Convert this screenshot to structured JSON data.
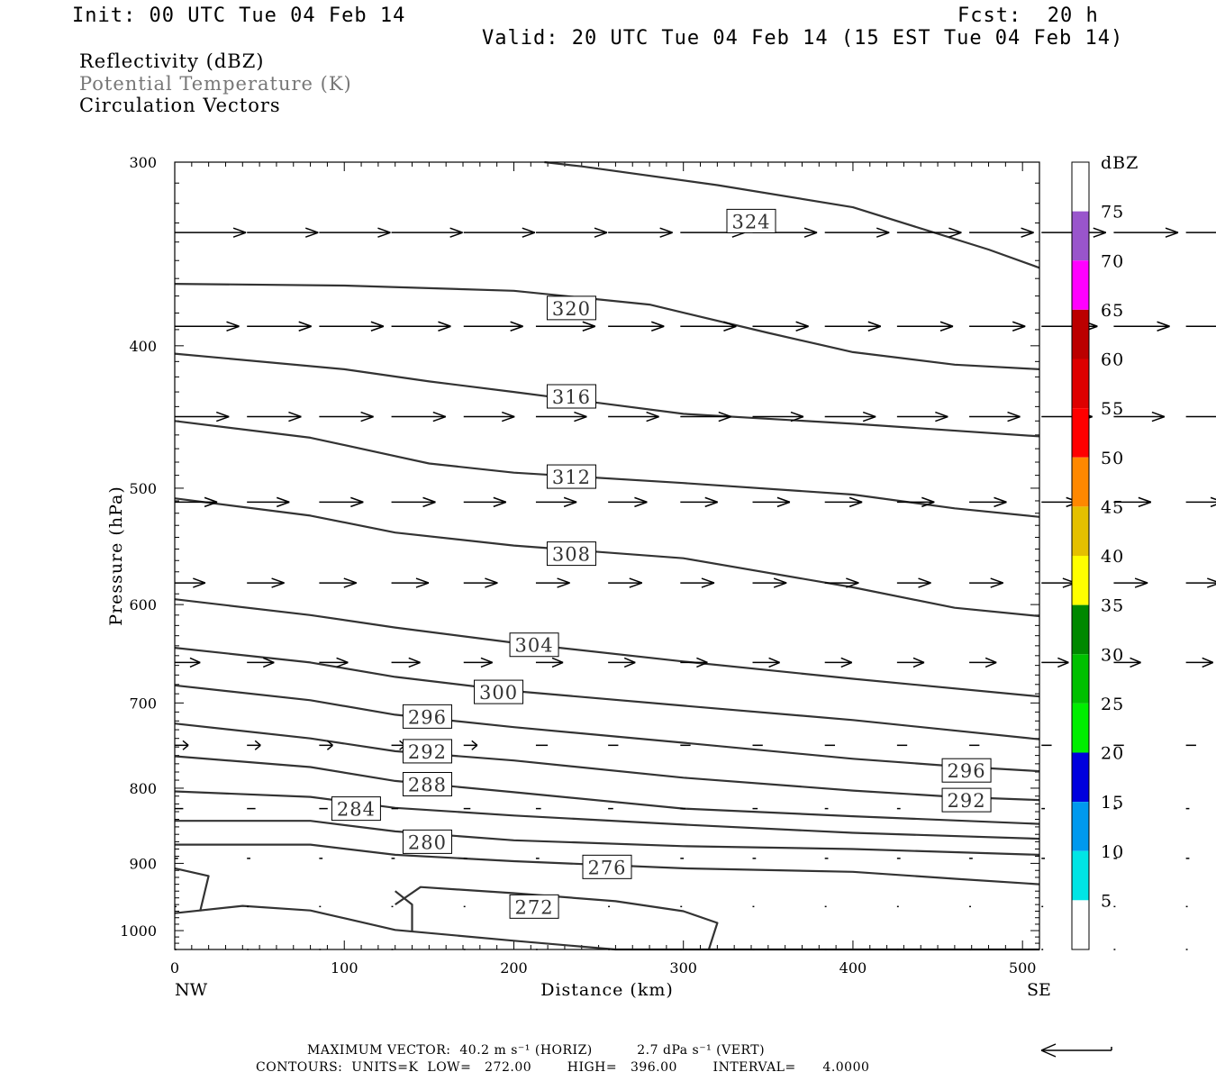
{
  "header": {
    "init": "Init: 00 UTC Tue 04 Feb 14",
    "fcst": "Fcst:  20 h",
    "valid": "Valid: 20 UTC Tue 04 Feb 14 (15 EST Tue 04 Feb 14)"
  },
  "legend": {
    "line1": "Reflectivity (dBZ)",
    "line2": "Potential Temperature (K)",
    "line3": "Circulation Vectors"
  },
  "colorbar": {
    "unit": "dBZ",
    "labels": [
      "5",
      "10",
      "15",
      "20",
      "25",
      "30",
      "35",
      "40",
      "45",
      "50",
      "55",
      "60",
      "65",
      "70",
      "75"
    ],
    "colors": [
      "#00e5e5",
      "#0099ee",
      "#0000dd",
      "#00ee00",
      "#00c000",
      "#008800",
      "#ffff00",
      "#e5c000",
      "#ff8800",
      "#ff0000",
      "#dd0000",
      "#bb0000",
      "#ff00ff",
      "#9955cc",
      "#ffffff"
    ]
  },
  "footer": {
    "max_vector": "MAXIMUM VECTOR:  40.2 m s⁻¹ (HORIZ)          2.7 dPa s⁻¹ (VERT)",
    "contours": "CONTOURS:  UNITS=K  LOW=   272.00        HIGH=   396.00        INTERVAL=      4.0000"
  },
  "chart_data": {
    "type": "contour cross-section",
    "xlabel": "Distance (km)",
    "ylabel": "Pressure (hPa)",
    "x_ticks": [
      "0",
      "100",
      "200",
      "300",
      "400",
      "500"
    ],
    "y_ticks": [
      "300",
      "400",
      "500",
      "600",
      "700",
      "800",
      "900",
      "1000"
    ],
    "x_end_labels": {
      "left": "NW",
      "right": "SE"
    },
    "xlim": [
      0,
      510
    ],
    "ylim": [
      1030,
      300
    ],
    "y_scale": "log",
    "isentropes_K": [
      {
        "theta": 324,
        "points": [
          [
            218,
            300
          ],
          [
            240,
            302
          ],
          [
            320,
            311
          ],
          [
            400,
            322
          ],
          [
            480,
            344
          ],
          [
            510,
            354
          ]
        ]
      },
      {
        "theta": 320,
        "points": [
          [
            0,
            363
          ],
          [
            100,
            364
          ],
          [
            200,
            367
          ],
          [
            280,
            375
          ],
          [
            350,
            392
          ],
          [
            400,
            404
          ],
          [
            460,
            412
          ],
          [
            510,
            415
          ]
        ]
      },
      {
        "theta": 316,
        "points": [
          [
            0,
            405
          ],
          [
            100,
            415
          ],
          [
            150,
            423
          ],
          [
            200,
            430
          ],
          [
            300,
            445
          ],
          [
            400,
            452
          ],
          [
            510,
            461
          ]
        ]
      },
      {
        "theta": 312,
        "points": [
          [
            0,
            450
          ],
          [
            80,
            462
          ],
          [
            150,
            481
          ],
          [
            200,
            488
          ],
          [
            300,
            496
          ],
          [
            400,
            505
          ],
          [
            460,
            516
          ],
          [
            510,
            523
          ]
        ]
      },
      {
        "theta": 308,
        "points": [
          [
            0,
            508
          ],
          [
            80,
            522
          ],
          [
            130,
            536
          ],
          [
            200,
            547
          ],
          [
            300,
            558
          ],
          [
            400,
            584
          ],
          [
            460,
            603
          ],
          [
            510,
            611
          ]
        ]
      },
      {
        "theta": 304,
        "points": [
          [
            0,
            595
          ],
          [
            80,
            610
          ],
          [
            130,
            622
          ],
          [
            200,
            637
          ],
          [
            300,
            656
          ],
          [
            400,
            674
          ],
          [
            510,
            693
          ]
        ]
      },
      {
        "theta": 300,
        "points": [
          [
            0,
            642
          ],
          [
            80,
            657
          ],
          [
            130,
            672
          ],
          [
            200,
            687
          ],
          [
            300,
            703
          ],
          [
            400,
            719
          ],
          [
            510,
            741
          ]
        ]
      },
      {
        "theta": 296,
        "points": [
          [
            0,
            681
          ],
          [
            80,
            697
          ],
          [
            130,
            713
          ],
          [
            200,
            727
          ],
          [
            300,
            745
          ],
          [
            400,
            764
          ],
          [
            460,
            773
          ],
          [
            510,
            779
          ]
        ]
      },
      {
        "theta": 292,
        "points": [
          [
            0,
            723
          ],
          [
            80,
            740
          ],
          [
            130,
            755
          ],
          [
            200,
            766
          ],
          [
            300,
            787
          ],
          [
            400,
            803
          ],
          [
            460,
            811
          ],
          [
            510,
            815
          ]
        ]
      },
      {
        "theta": 288,
        "points": [
          [
            0,
            761
          ],
          [
            80,
            774
          ],
          [
            130,
            791
          ],
          [
            200,
            805
          ],
          [
            300,
            826
          ],
          [
            400,
            836
          ],
          [
            510,
            846
          ]
        ]
      },
      {
        "theta": 284,
        "points": [
          [
            0,
            804
          ],
          [
            80,
            811
          ],
          [
            130,
            825
          ],
          [
            200,
            835
          ],
          [
            300,
            847
          ],
          [
            400,
            858
          ],
          [
            510,
            866
          ]
        ]
      },
      {
        "theta": 280,
        "points": [
          [
            0,
            842
          ],
          [
            80,
            842
          ],
          [
            130,
            856
          ],
          [
            200,
            868
          ],
          [
            300,
            876
          ],
          [
            400,
            880
          ],
          [
            510,
            888
          ]
        ]
      },
      {
        "theta": 276,
        "points": [
          [
            0,
            874
          ],
          [
            80,
            874
          ],
          [
            130,
            888
          ],
          [
            200,
            897
          ],
          [
            300,
            907
          ],
          [
            400,
            912
          ],
          [
            460,
            922
          ],
          [
            510,
            930
          ]
        ]
      },
      {
        "theta": 272,
        "points": [
          [
            130,
            960
          ],
          [
            145,
            934
          ],
          [
            200,
            943
          ],
          [
            260,
            955
          ],
          [
            300,
            970
          ],
          [
            320,
            988
          ],
          [
            315,
            1030
          ]
        ]
      },
      {
        "theta": 272,
        "points": [
          [
            0,
            973
          ],
          [
            40,
            962
          ],
          [
            80,
            969
          ],
          [
            130,
            999
          ],
          [
            200,
            1016
          ],
          [
            260,
            1030
          ],
          [
            510,
            1030
          ]
        ]
      },
      {
        "theta": 276,
        "points": [
          [
            0,
            907
          ],
          [
            20,
            918
          ],
          [
            15,
            970
          ]
        ]
      },
      {
        "theta": 276,
        "points": [
          [
            130,
            940
          ],
          [
            140,
            960
          ],
          [
            140,
            1000
          ]
        ]
      }
    ],
    "contour_labels": [
      {
        "text": "324",
        "x": 340,
        "p": 329
      },
      {
        "text": "320",
        "x": 234,
        "p": 377
      },
      {
        "text": "316",
        "x": 234,
        "p": 433
      },
      {
        "text": "312",
        "x": 234,
        "p": 491
      },
      {
        "text": "308",
        "x": 234,
        "p": 554
      },
      {
        "text": "304",
        "x": 212,
        "p": 639
      },
      {
        "text": "300",
        "x": 191,
        "p": 688
      },
      {
        "text": "296",
        "x": 149,
        "p": 715
      },
      {
        "text": "292",
        "x": 149,
        "p": 755
      },
      {
        "text": "288",
        "x": 149,
        "p": 795
      },
      {
        "text": "284",
        "x": 107,
        "p": 826
      },
      {
        "text": "280",
        "x": 149,
        "p": 870
      },
      {
        "text": "276",
        "x": 255,
        "p": 905
      },
      {
        "text": "272",
        "x": 212,
        "p": 963
      },
      {
        "text": "296",
        "x": 467,
        "p": 778
      },
      {
        "text": "292",
        "x": 467,
        "p": 815
      }
    ],
    "vector_rows": [
      {
        "p": 335,
        "lengths_km": [
          42,
          42,
          42,
          42,
          42,
          42,
          38,
          38,
          38,
          38,
          38,
          38,
          38,
          38,
          38
        ]
      },
      {
        "p": 388,
        "lengths_km": [
          38,
          38,
          38,
          35,
          35,
          35,
          33,
          33,
          33,
          33,
          33,
          33,
          33,
          33,
          33
        ]
      },
      {
        "p": 447,
        "lengths_km": [
          32,
          32,
          32,
          32,
          30,
          30,
          30,
          30,
          30,
          30,
          30,
          30,
          30,
          30,
          30
        ]
      },
      {
        "p": 511,
        "lengths_km": [
          25,
          25,
          26,
          26,
          25,
          24,
          23,
          22,
          22,
          22,
          22,
          22,
          22,
          22,
          22
        ]
      },
      {
        "p": 580,
        "lengths_km": [
          18,
          22,
          22,
          22,
          20,
          20,
          20,
          20,
          20,
          20,
          20,
          20,
          20,
          20,
          20
        ]
      },
      {
        "p": 657,
        "lengths_km": [
          15,
          16,
          17,
          17,
          17,
          16,
          16,
          16,
          16,
          16,
          16,
          16,
          16,
          16,
          16
        ]
      },
      {
        "p": 748,
        "lengths_km": [
          8,
          8,
          8,
          8,
          8,
          7,
          6,
          6,
          6,
          6,
          6,
          6,
          6,
          6,
          6
        ]
      },
      {
        "p": 826,
        "lengths_km": [
          5,
          5,
          5,
          4,
          4,
          3,
          3,
          3,
          3,
          2,
          2,
          2,
          2,
          2,
          2
        ]
      },
      {
        "p": 893,
        "lengths_km": [
          2,
          2,
          2,
          2,
          2,
          2,
          2,
          2,
          2,
          2,
          2,
          2,
          2,
          2,
          2
        ]
      },
      {
        "p": 963,
        "lengths_km": [
          1,
          1,
          1,
          1,
          1,
          1,
          1,
          1,
          1,
          1,
          1,
          1,
          1,
          1,
          1
        ]
      },
      {
        "p": 1030,
        "lengths_km": [
          1,
          1,
          1,
          1,
          1,
          1,
          1,
          1,
          1,
          1,
          1,
          1,
          1,
          1,
          1
        ]
      }
    ],
    "grid": false,
    "legend_position": "colorbar right"
  }
}
